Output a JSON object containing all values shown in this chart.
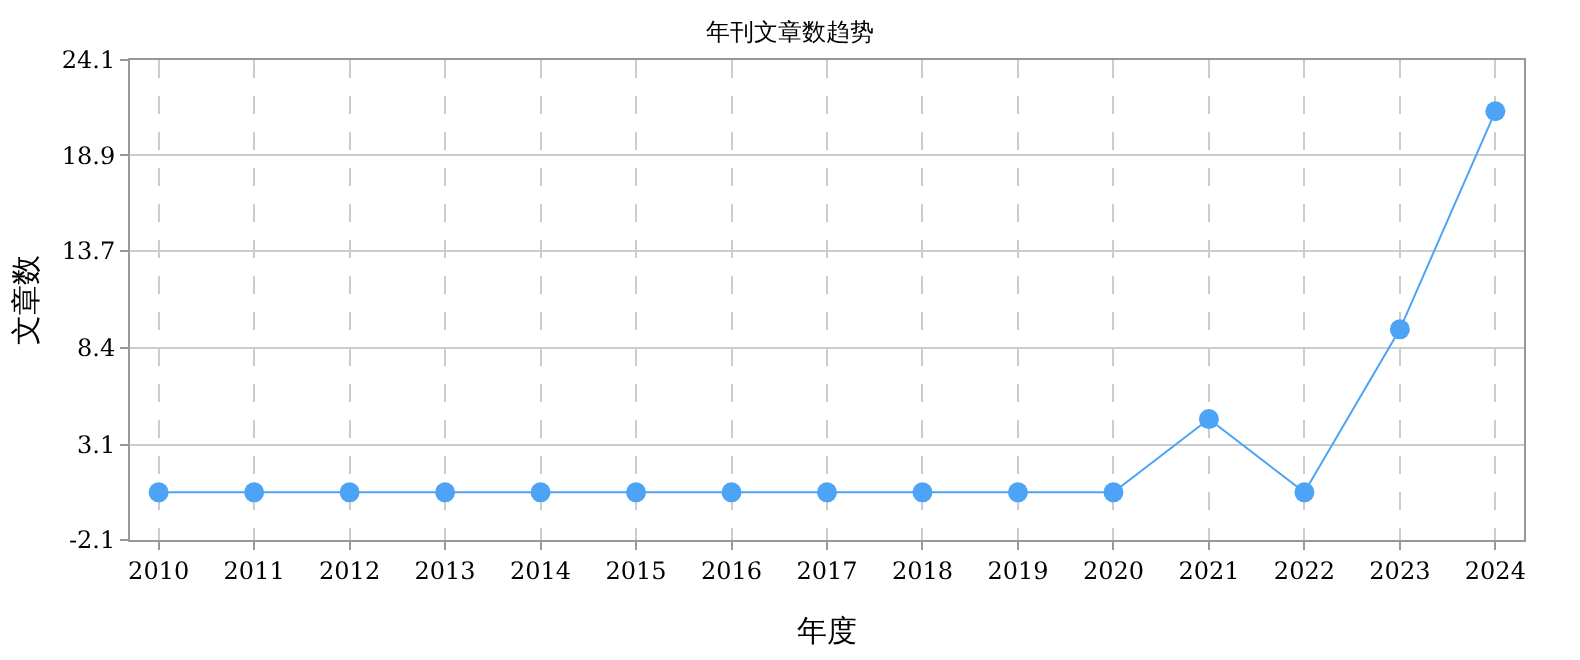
{
  "chart_data": {
    "type": "line",
    "title": "年刊文章数趋势",
    "xlabel": "年度",
    "ylabel": "文章数",
    "categories": [
      "2010",
      "2011",
      "2012",
      "2013",
      "2014",
      "2015",
      "2016",
      "2017",
      "2018",
      "2019",
      "2020",
      "2021",
      "2022",
      "2023",
      "2024"
    ],
    "series": [
      {
        "color": "#4da3f5",
        "values": [
          0.5,
          0.5,
          0.5,
          0.5,
          0.5,
          0.5,
          0.5,
          0.5,
          0.5,
          0.5,
          0.5,
          4.5,
          0.5,
          9.4,
          21.3
        ]
      }
    ],
    "ylim": [
      -2.1,
      24.1
    ],
    "yticks": [
      -2.1,
      3.1,
      8.4,
      13.7,
      18.9,
      24.1
    ],
    "grid": true,
    "marker": "circle",
    "line_style": "solid"
  }
}
